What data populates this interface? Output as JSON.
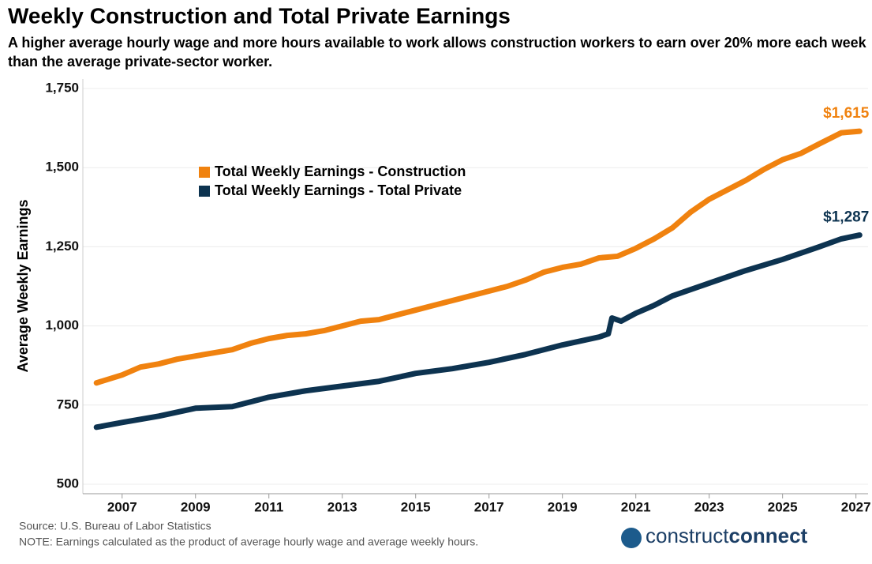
{
  "chart_data": {
    "type": "line",
    "title": "Weekly Construction and Total Private Earnings",
    "subtitle": "A higher average hourly wage and more hours available to work allows construction workers to earn over 20% more each week than the average private-sector worker.",
    "ylabel": "Average Weekly Earnings",
    "source": "Source: U.S. Bureau of Labor Statistics",
    "note": "NOTE: Earnings calculated as the product of average hourly wage and average weekly hours.",
    "logo": [
      "construct",
      "connect"
    ],
    "xlim": [
      2005.93,
      2027.33
    ],
    "xticks": [
      2007,
      2009,
      2011,
      2013,
      2015,
      2017,
      2019,
      2021,
      2023,
      2025,
      2027
    ],
    "ylim": [
      470,
      1780
    ],
    "yticks": [
      500,
      750,
      {
        "value": 1000,
        "label": "1,000"
      },
      {
        "value": 1250,
        "label": "1,250"
      },
      {
        "value": 1500,
        "label": "1,500"
      },
      {
        "value": 1750,
        "label": "1,750"
      }
    ],
    "grid": true,
    "legend": "upper-left",
    "series": [
      {
        "name": "Total Weekly Earnings - Construction",
        "color": "#f0820f",
        "x": [
          2006.3,
          2007,
          2007.5,
          2008,
          2008.5,
          2009,
          2009.5,
          2010,
          2010.5,
          2011,
          2011.5,
          2012,
          2012.5,
          2013,
          2013.5,
          2014,
          2014.5,
          2015,
          2015.5,
          2016,
          2016.5,
          2017,
          2017.5,
          2018,
          2018.5,
          2019,
          2019.5,
          2020,
          2020.5,
          2021,
          2021.5,
          2022,
          2022.5,
          2023,
          2023.5,
          2024,
          2024.5,
          2025,
          2025.5,
          2026,
          2026.6,
          2027.1
        ],
        "values": [
          820,
          845,
          870,
          880,
          895,
          905,
          915,
          925,
          945,
          960,
          970,
          975,
          985,
          1000,
          1015,
          1020,
          1035,
          1050,
          1065,
          1080,
          1095,
          1110,
          1125,
          1145,
          1170,
          1185,
          1195,
          1215,
          1220,
          1245,
          1275,
          1310,
          1360,
          1400,
          1430,
          1460,
          1495,
          1525,
          1545,
          1575,
          1610,
          1615
        ],
        "value_labels": [
          null,
          null,
          null,
          null,
          null,
          null,
          null,
          null,
          null,
          null,
          null,
          null,
          null,
          null,
          null,
          null,
          null,
          null,
          null,
          null,
          null,
          null,
          null,
          null,
          null,
          null,
          null,
          null,
          null,
          null,
          null,
          null,
          null,
          null,
          null,
          null,
          null,
          null,
          null,
          null,
          null,
          "$1,615"
        ]
      },
      {
        "name": "Total Weekly Earnings - Total Private",
        "color": "#0d3350",
        "x": [
          2006.3,
          2007,
          2008,
          2009,
          2010,
          2011,
          2012,
          2013,
          2014,
          2015,
          2016,
          2017,
          2018,
          2019,
          2020,
          2020.25,
          2020.35,
          2020.6,
          2021,
          2021.5,
          2022,
          2023,
          2024,
          2025,
          2026,
          2026.6,
          2027.1
        ],
        "values": [
          680,
          695,
          715,
          740,
          745,
          775,
          795,
          810,
          825,
          850,
          865,
          885,
          910,
          940,
          965,
          975,
          1025,
          1015,
          1040,
          1065,
          1095,
          1135,
          1175,
          1210,
          1250,
          1275,
          1287
        ],
        "value_labels": [
          null,
          null,
          null,
          null,
          null,
          null,
          null,
          null,
          null,
          null,
          null,
          null,
          null,
          null,
          null,
          null,
          null,
          null,
          null,
          null,
          null,
          null,
          null,
          null,
          null,
          null,
          "$1,287"
        ]
      }
    ]
  }
}
